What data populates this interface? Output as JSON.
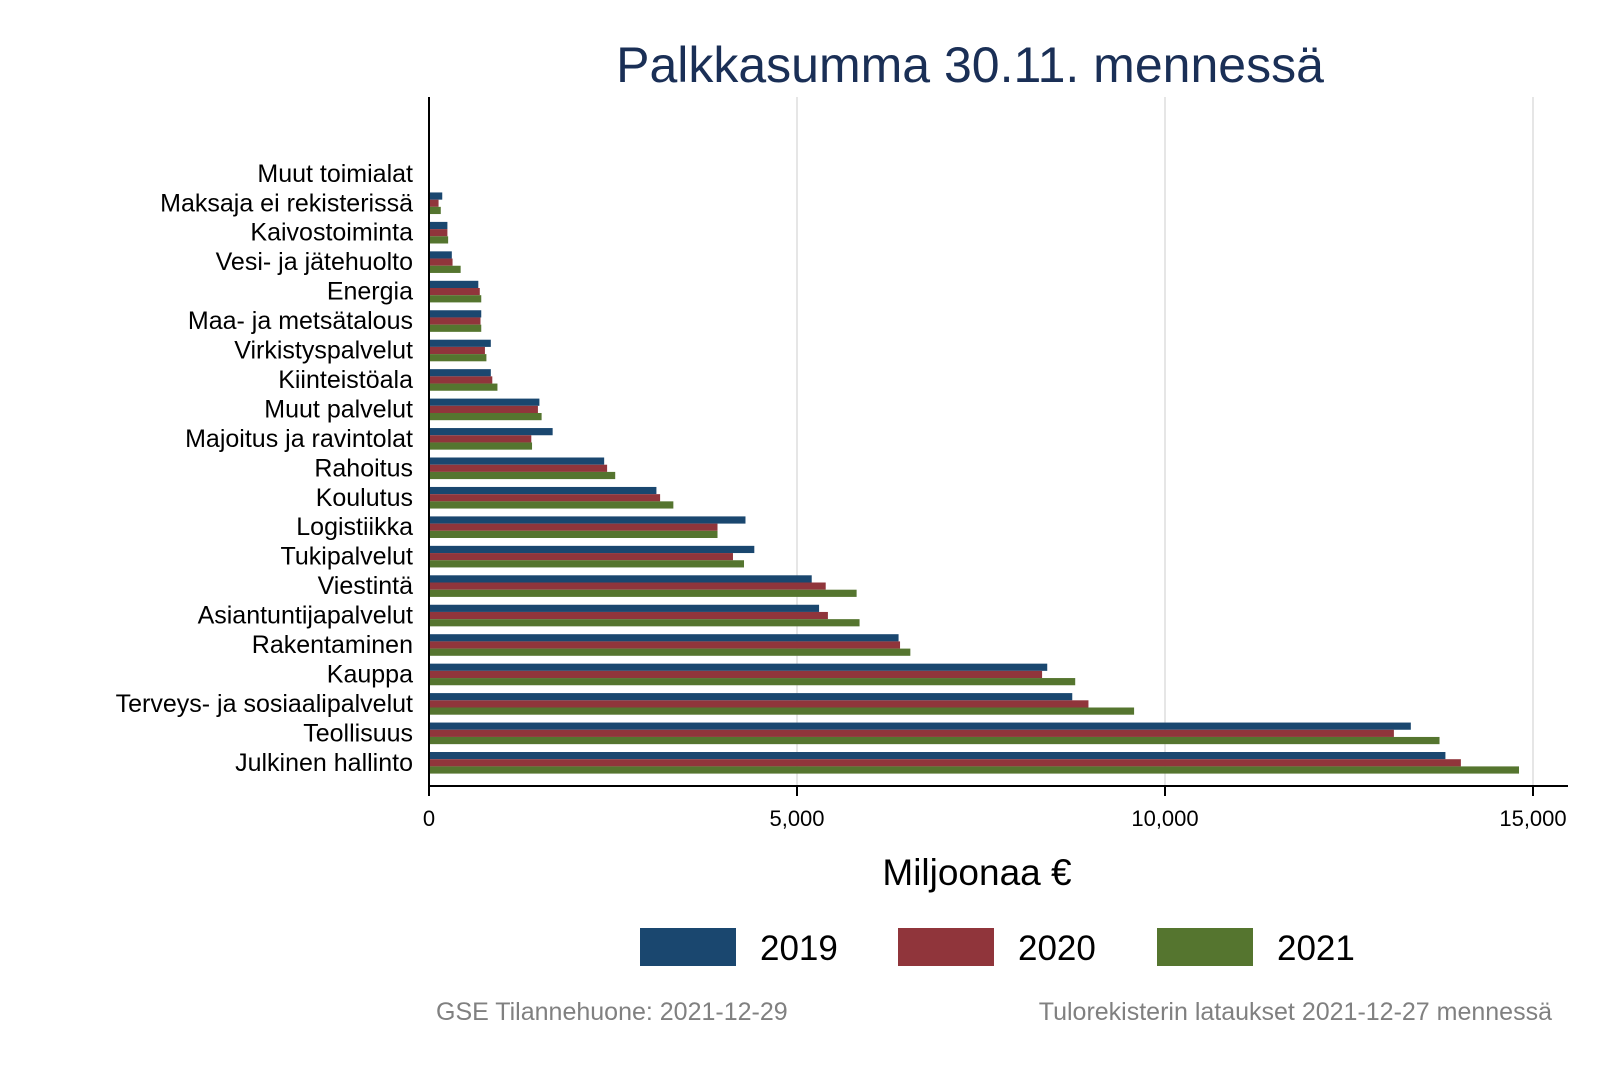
{
  "chart_data": {
    "type": "bar",
    "orientation": "horizontal",
    "title": "Palkkasumma 30.11. mennessä",
    "xlabel": "Miljoonaa €",
    "ylabel": "",
    "xlim": [
      0,
      15500
    ],
    "xticks": [
      0,
      5000,
      10000,
      15000
    ],
    "xtick_labels": [
      "0",
      "5,000",
      "10,000",
      "15,000"
    ],
    "grid": "vertical",
    "legend_position": "bottom",
    "categories": [
      "Muut toimialat",
      "Maksaja ei rekisterissä",
      "Kaivostoiminta",
      "Vesi- ja jätehuolto",
      "Energia",
      "Maa- ja metsätalous",
      "Virkistyspalvelut",
      "Kiinteistöala",
      "Muut palvelut",
      "Majoitus ja ravintolat",
      "Rahoitus",
      "Koulutus",
      "Logistiikka",
      "Tukipalvelut",
      "Viestintä",
      "Asiantuntijapalvelut",
      "Rakentaminen",
      "Kauppa",
      "Terveys- ja sosiaalipalvelut",
      "Teollisuus",
      "Julkinen hallinto"
    ],
    "series": [
      {
        "name": "2019",
        "color": "#1a476f",
        "values": [
          10,
          180,
          250,
          310,
          670,
          710,
          840,
          840,
          1500,
          1680,
          2380,
          3090,
          4300,
          4420,
          5200,
          5300,
          6380,
          8400,
          8740,
          13340,
          13810
        ]
      },
      {
        "name": "2020",
        "color": "#90353b",
        "values": [
          10,
          130,
          250,
          320,
          690,
          700,
          760,
          860,
          1480,
          1390,
          2420,
          3140,
          3920,
          4130,
          5390,
          5420,
          6400,
          8330,
          8960,
          13110,
          14020
        ]
      },
      {
        "name": "2021",
        "color": "#55752f",
        "values": [
          10,
          160,
          260,
          430,
          710,
          710,
          780,
          930,
          1530,
          1400,
          2530,
          3320,
          3920,
          4280,
          5810,
          5850,
          6540,
          8780,
          9580,
          13730,
          14810
        ]
      }
    ]
  },
  "footer": {
    "left_note": "GSE Tilannehuone: 2021-12-29",
    "right_note": "Tulorekisterin lataukset 2021-12-27 mennessä"
  }
}
